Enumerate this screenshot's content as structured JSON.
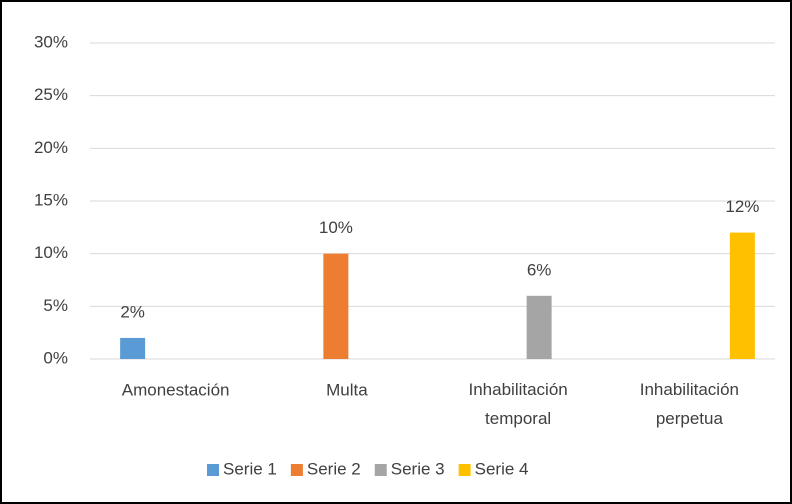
{
  "chart_data": {
    "type": "bar",
    "categories": [
      "Amonestación",
      "Multa",
      "Inhabilitación temporal",
      "Inhabilitación perpetua"
    ],
    "series": [
      {
        "name": "Serie 1",
        "color": "#5b9bd5",
        "values": [
          2,
          null,
          null,
          null
        ],
        "value_labels": [
          "2%",
          null,
          null,
          null
        ]
      },
      {
        "name": "Serie 2",
        "color": "#ed7d31",
        "values": [
          null,
          10,
          null,
          null
        ],
        "value_labels": [
          null,
          "10%",
          null,
          null
        ]
      },
      {
        "name": "Serie 3",
        "color": "#a5a5a5",
        "values": [
          null,
          null,
          6,
          null
        ],
        "value_labels": [
          null,
          null,
          "6%",
          null
        ]
      },
      {
        "name": "Serie 4",
        "color": "#ffc000",
        "values": [
          null,
          null,
          null,
          12
        ],
        "value_labels": [
          null,
          null,
          null,
          "12%"
        ]
      }
    ],
    "ylim": [
      0,
      30
    ],
    "yticks": [
      {
        "value": 0,
        "label": "0%"
      },
      {
        "value": 5,
        "label": "5%"
      },
      {
        "value": 10,
        "label": "10%"
      },
      {
        "value": 15,
        "label": "15%"
      },
      {
        "value": 20,
        "label": "20%"
      },
      {
        "value": 25,
        "label": "25%"
      },
      {
        "value": 30,
        "label": "30%"
      }
    ],
    "grid": true,
    "legend": "bottom"
  }
}
